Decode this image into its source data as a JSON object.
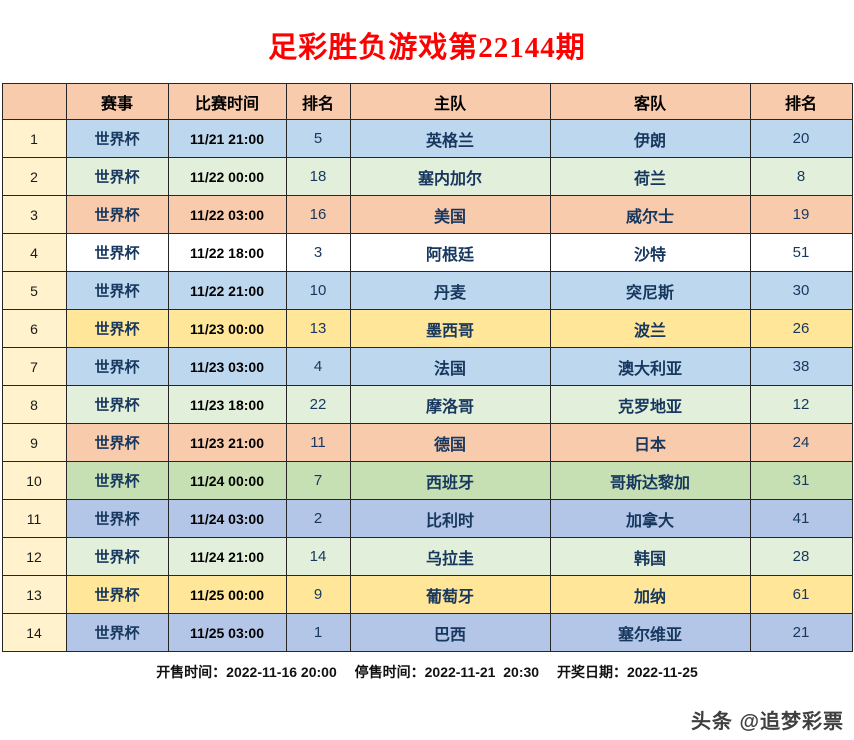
{
  "page": {
    "title": "足彩胜负游戏第22144期",
    "watermark": "头条 @追梦彩票"
  },
  "colors": {
    "title": "#FF0000",
    "header_bg": "#F8CBAD",
    "index_bg": "#FFF2CC",
    "team_text": "#17375E",
    "border": "#262626"
  },
  "footer": {
    "sale_start": "开售时间：2022-11-16 20:00",
    "sale_stop": "停售时间：2022-11-21  20:30",
    "draw_date": "开奖日期：2022-11-25"
  },
  "table": {
    "headers": {
      "index": "",
      "league": "赛事",
      "time": "比赛时间",
      "home_rank": "排名",
      "home": "主队",
      "away": "客队",
      "away_rank": "排名"
    },
    "rows": [
      {
        "index": 1,
        "league": "世界杯",
        "time": "11/21 21:00",
        "home_rank": 5,
        "home": "英格兰",
        "away": "伊朗",
        "away_rank": 20,
        "bg": "#BDD7EE"
      },
      {
        "index": 2,
        "league": "世界杯",
        "time": "11/22 00:00",
        "home_rank": 18,
        "home": "塞内加尔",
        "away": "荷兰",
        "away_rank": 8,
        "bg": "#E2EFDA"
      },
      {
        "index": 3,
        "league": "世界杯",
        "time": "11/22 03:00",
        "home_rank": 16,
        "home": "美国",
        "away": "威尔士",
        "away_rank": 19,
        "bg": "#F8CBAD"
      },
      {
        "index": 4,
        "league": "世界杯",
        "time": "11/22 18:00",
        "home_rank": 3,
        "home": "阿根廷",
        "away": "沙特",
        "away_rank": 51,
        "bg": "#FFFFFF"
      },
      {
        "index": 5,
        "league": "世界杯",
        "time": "11/22 21:00",
        "home_rank": 10,
        "home": "丹麦",
        "away": "突尼斯",
        "away_rank": 30,
        "bg": "#BDD7EE"
      },
      {
        "index": 6,
        "league": "世界杯",
        "time": "11/23 00:00",
        "home_rank": 13,
        "home": "墨西哥",
        "away": "波兰",
        "away_rank": 26,
        "bg": "#FFE699"
      },
      {
        "index": 7,
        "league": "世界杯",
        "time": "11/23 03:00",
        "home_rank": 4,
        "home": "法国",
        "away": "澳大利亚",
        "away_rank": 38,
        "bg": "#BDD7EE"
      },
      {
        "index": 8,
        "league": "世界杯",
        "time": "11/23 18:00",
        "home_rank": 22,
        "home": "摩洛哥",
        "away": "克罗地亚",
        "away_rank": 12,
        "bg": "#E2EFDA"
      },
      {
        "index": 9,
        "league": "世界杯",
        "time": "11/23 21:00",
        "home_rank": 11,
        "home": "德国",
        "away": "日本",
        "away_rank": 24,
        "bg": "#F8CBAD"
      },
      {
        "index": 10,
        "league": "世界杯",
        "time": "11/24 00:00",
        "home_rank": 7,
        "home": "西班牙",
        "away": "哥斯达黎加",
        "away_rank": 31,
        "bg": "#C6E0B4"
      },
      {
        "index": 11,
        "league": "世界杯",
        "time": "11/24 03:00",
        "home_rank": 2,
        "home": "比利时",
        "away": "加拿大",
        "away_rank": 41,
        "bg": "#B4C6E7"
      },
      {
        "index": 12,
        "league": "世界杯",
        "time": "11/24 21:00",
        "home_rank": 14,
        "home": "乌拉圭",
        "away": "韩国",
        "away_rank": 28,
        "bg": "#E2EFDA"
      },
      {
        "index": 13,
        "league": "世界杯",
        "time": "11/25 00:00",
        "home_rank": 9,
        "home": "葡萄牙",
        "away": "加纳",
        "away_rank": 61,
        "bg": "#FFE699"
      },
      {
        "index": 14,
        "league": "世界杯",
        "time": "11/25 03:00",
        "home_rank": 1,
        "home": "巴西",
        "away": "塞尔维亚",
        "away_rank": 21,
        "bg": "#B4C6E7"
      }
    ]
  }
}
